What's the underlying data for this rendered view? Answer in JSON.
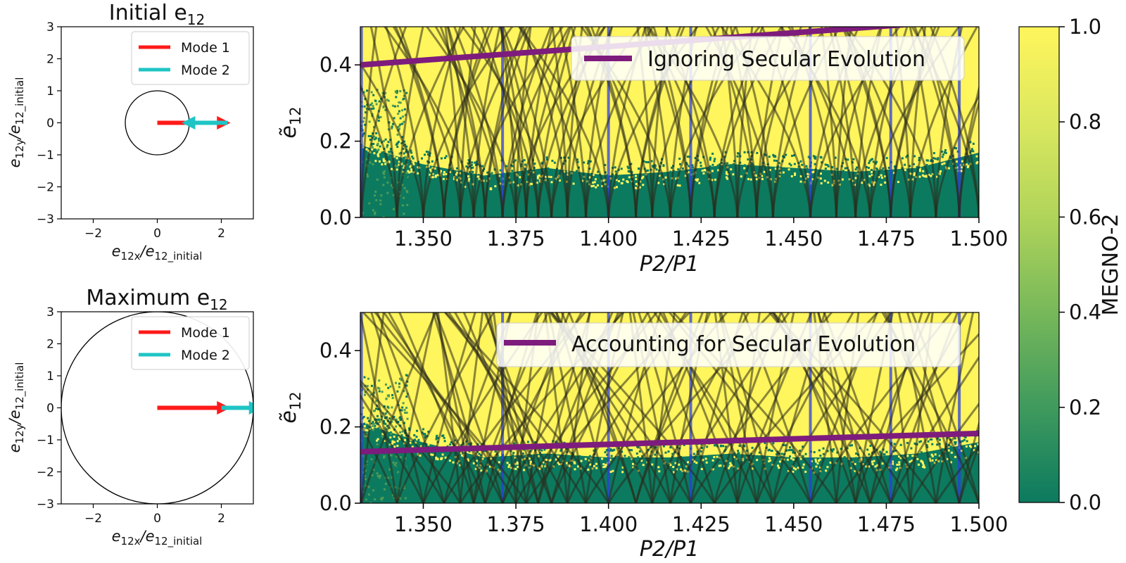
{
  "figure": {
    "colorbar": {
      "label": "MEGNO-2",
      "range": [
        0.0,
        1.0
      ],
      "ticks": [
        "0.0",
        "0.2",
        "0.4",
        "0.6",
        "0.8",
        "1.0"
      ],
      "colors": [
        "#0c7a5f",
        "#3f9a5d",
        "#77b85a",
        "#b0d45a",
        "#dbe85f",
        "#fff55c"
      ]
    },
    "colors": {
      "mode1": "#ff1a1a",
      "mode2": "#1fc4c4",
      "secular": "#7d1c7d",
      "chaotic_yellow": "#fff55c",
      "stable_green": "#0c7a5f",
      "resonance_blue": "#2b3de0",
      "separatrix": "#2a2a1a"
    }
  },
  "chart_data": [
    {
      "id": "initial",
      "type": "vector",
      "title": "Initial e",
      "title_sub": "12",
      "xlabel_main": "e",
      "xlabel_sub": "12x",
      "xlabel_tail": "/e",
      "xlabel_sub2": "12_initial",
      "ylabel_main": "e",
      "ylabel_sub": "12y",
      "ylabel_tail": "/e",
      "ylabel_sub2": "12_initial",
      "xlim": [
        -3,
        3
      ],
      "ylim": [
        -3,
        3
      ],
      "xticks": [
        "−2",
        "0",
        "2"
      ],
      "yticks": [
        "3",
        "2",
        "1",
        "0",
        "−1",
        "−2",
        "−3"
      ],
      "circle_radius": 1.0,
      "legend": [
        "Mode 1",
        "Mode 2"
      ],
      "mode1_vector": [
        0,
        0,
        2.2,
        0
      ],
      "mode2_vector": [
        2.2,
        0,
        0.85,
        0
      ]
    },
    {
      "id": "maximum",
      "type": "vector",
      "title": "Maximum e",
      "title_sub": "12",
      "xlabel_main": "e",
      "xlabel_sub": "12x",
      "xlabel_tail": "/e",
      "xlabel_sub2": "12_initial",
      "ylabel_main": "e",
      "ylabel_sub": "12y",
      "ylabel_tail": "/e",
      "ylabel_sub2": "12_initial",
      "xlim": [
        -3,
        3
      ],
      "ylim": [
        -3,
        3
      ],
      "xticks": [
        "−2",
        "0",
        "2"
      ],
      "yticks": [
        "3",
        "2",
        "1",
        "0",
        "−1",
        "−2",
        "−3"
      ],
      "circle_radius": 3.0,
      "legend": [
        "Mode 1",
        "Mode 2"
      ],
      "mode1_vector": [
        0,
        0,
        2.2,
        0
      ],
      "mode2_vector": [
        2.0,
        0,
        3.2,
        0
      ]
    },
    {
      "id": "top-map",
      "type": "heatmap",
      "xlabel": "P2/P1",
      "ylabel_main": "ẽ",
      "ylabel_sub": "12",
      "xlim": [
        1.333,
        1.5
      ],
      "ylim": [
        0.0,
        0.5
      ],
      "xticks": [
        1.35,
        1.375,
        1.4,
        1.425,
        1.45,
        1.475,
        1.5
      ],
      "xtick_labels": [
        "1.350",
        "1.375",
        "1.400",
        "1.425",
        "1.450",
        "1.475",
        "1.500"
      ],
      "yticks": [
        0.0,
        0.2,
        0.4
      ],
      "ytick_labels": [
        "0.0",
        "0.2",
        "0.4"
      ],
      "legend": "Ignoring Secular Evolution",
      "secular_line": {
        "x": [
          1.333,
          1.5
        ],
        "y": [
          0.4,
          0.52
        ]
      },
      "resonances": [
        1.3333,
        1.3714,
        1.4,
        1.4222,
        1.4545,
        1.4762,
        1.4947
      ],
      "separatrix_centers": [
        1.3333,
        1.3429,
        1.35,
        1.3556,
        1.36,
        1.3636,
        1.3667,
        1.3714,
        1.375,
        1.3778,
        1.381,
        1.3846,
        1.3889,
        1.3939,
        1.4,
        1.4074,
        1.4118,
        1.4167,
        1.4222,
        1.4286,
        1.4348,
        1.44,
        1.4444,
        1.4545,
        1.4615,
        1.4667,
        1.4706,
        1.4762,
        1.4815,
        1.4884,
        1.4947,
        1.5
      ],
      "stable_boundary": [
        0.19,
        0.14,
        0.11,
        0.13,
        0.11,
        0.12,
        0.14,
        0.13,
        0.12,
        0.13,
        0.17
      ]
    },
    {
      "id": "bottom-map",
      "type": "heatmap",
      "xlabel": "P2/P1",
      "ylabel_main": "ẽ",
      "ylabel_sub": "12",
      "xlim": [
        1.333,
        1.5
      ],
      "ylim": [
        0.0,
        0.5
      ],
      "xticks": [
        1.35,
        1.375,
        1.4,
        1.425,
        1.45,
        1.475,
        1.5
      ],
      "xtick_labels": [
        "1.350",
        "1.375",
        "1.400",
        "1.425",
        "1.450",
        "1.475",
        "1.500"
      ],
      "yticks": [
        0.0,
        0.2,
        0.4
      ],
      "ytick_labels": [
        "0.0",
        "0.2",
        "0.4"
      ],
      "legend": "Accounting for Secular Evolution",
      "secular_line": {
        "x": [
          1.333,
          1.5
        ],
        "y": [
          0.135,
          0.183
        ]
      },
      "resonances": [
        1.3333,
        1.3714,
        1.4,
        1.4222,
        1.4545,
        1.4762,
        1.4947
      ],
      "separatrix_centers": [
        1.3333,
        1.3429,
        1.35,
        1.3556,
        1.36,
        1.3636,
        1.3667,
        1.3714,
        1.375,
        1.3778,
        1.381,
        1.3846,
        1.3889,
        1.3939,
        1.4,
        1.4074,
        1.4118,
        1.4167,
        1.4222,
        1.4286,
        1.4348,
        1.44,
        1.4444,
        1.4545,
        1.4615,
        1.4667,
        1.4706,
        1.4762,
        1.4815,
        1.4884,
        1.4947,
        1.5
      ],
      "stable_boundary": [
        0.21,
        0.16,
        0.12,
        0.13,
        0.12,
        0.12,
        0.13,
        0.12,
        0.12,
        0.13,
        0.16
      ]
    }
  ]
}
